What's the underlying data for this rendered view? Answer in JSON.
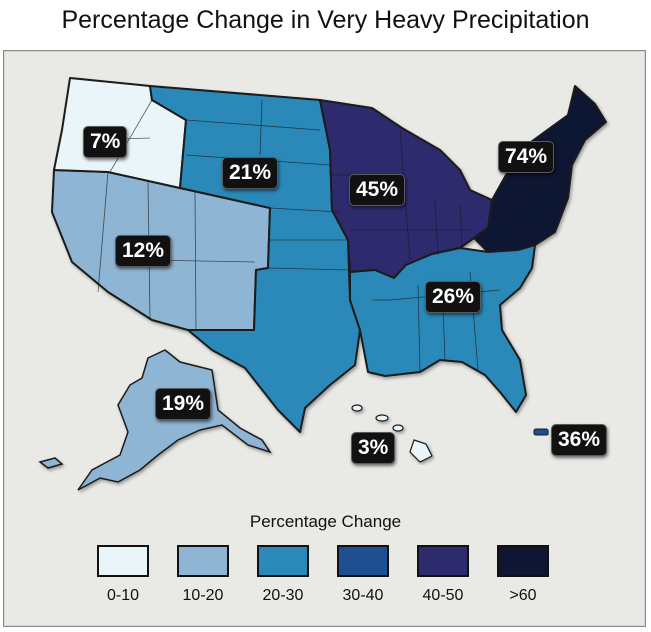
{
  "title": "Percentage Change in Very Heavy Precipitation",
  "legend": {
    "title": "Percentage Change",
    "items": [
      {
        "label": "0-10",
        "color": "#e9f5f8"
      },
      {
        "label": "10-20",
        "color": "#8fb5d4"
      },
      {
        "label": "20-30",
        "color": "#2a89b9"
      },
      {
        "label": "30-40",
        "color": "#1e4f90"
      },
      {
        "label": "40-50",
        "color": "#2e2a6e"
      },
      {
        "label": ">60",
        "color": "#0f1533"
      }
    ]
  },
  "regions": [
    {
      "name": "Northwest",
      "value": "7%",
      "color": "#e9f5f8"
    },
    {
      "name": "Great Plains",
      "value": "21%",
      "color": "#2a89b9"
    },
    {
      "name": "Southwest",
      "value": "12%",
      "color": "#8fb5d4"
    },
    {
      "name": "Midwest",
      "value": "45%",
      "color": "#2e2a6e"
    },
    {
      "name": "Northeast",
      "value": "74%",
      "color": "#0f1533"
    },
    {
      "name": "Southeast",
      "value": "26%",
      "color": "#2a89b9"
    },
    {
      "name": "Alaska",
      "value": "19%",
      "color": "#8fb5d4"
    },
    {
      "name": "Hawaii",
      "value": "3%",
      "color": "#e9f5f8"
    },
    {
      "name": "Puerto Rico",
      "value": "36%",
      "color": "#1e4f90"
    }
  ]
}
